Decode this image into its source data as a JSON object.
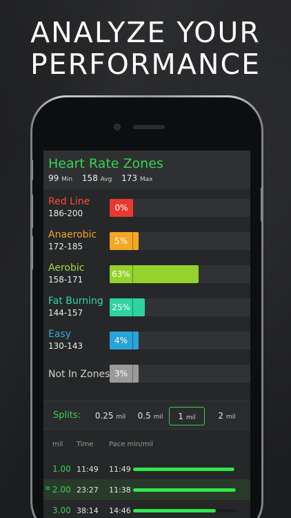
{
  "headline": {
    "line1": "ANALYZE YOUR",
    "line2": "PERFORMANCE"
  },
  "heart_rate": {
    "title": "Heart Rate Zones",
    "min_value": "99",
    "min_label": "Min",
    "avg_value": "158",
    "avg_label": "Avg",
    "max_value": "173",
    "max_label": "Max"
  },
  "zones": [
    {
      "name": "Red Line",
      "range": "186-200",
      "percent_label": "0%",
      "fraction": 0.0,
      "color": "#e8392f",
      "name_color": "#ff4a3d"
    },
    {
      "name": "Anaerobic",
      "range": "172-185",
      "percent_label": "5%",
      "fraction": 0.05,
      "color": "#f5a623",
      "name_color": "#f5a623"
    },
    {
      "name": "Aerobic",
      "range": "158-171",
      "percent_label": "63%",
      "fraction": 0.63,
      "color": "#94d22e",
      "name_color": "#a5d83a"
    },
    {
      "name": "Fat Burning",
      "range": "144-157",
      "percent_label": "25%",
      "fraction": 0.25,
      "color": "#2ed3a0",
      "name_color": "#35d6a6"
    },
    {
      "name": "Easy",
      "range": "130-143",
      "percent_label": "4%",
      "fraction": 0.04,
      "color": "#2aa3d8",
      "name_color": "#34a8e0"
    },
    {
      "name": "Not In Zones",
      "range": "",
      "percent_label": "3%",
      "fraction": 0.03,
      "color": "#9a9a9a",
      "name_color": "#cfcfcf"
    }
  ],
  "splits": {
    "label": "Splits:",
    "options": [
      {
        "value": "0.25",
        "unit": "mil",
        "active": false
      },
      {
        "value": "0.5",
        "unit": "mil",
        "active": false
      },
      {
        "value": "1",
        "unit": "mil",
        "active": true
      },
      {
        "value": "2",
        "unit": "mil",
        "active": false
      }
    ]
  },
  "table": {
    "headers": {
      "mil": "mil",
      "time": "Time",
      "pace": "Pace min/mil"
    },
    "rows": [
      {
        "mil": "1.00",
        "time": "11:49",
        "pace": "11:49",
        "pace_fraction": 0.98,
        "highlight": false
      },
      {
        "mil": "2.00",
        "time": "23:27",
        "pace": "11:38",
        "pace_fraction": 0.99,
        "highlight": true
      },
      {
        "mil": "3.00",
        "time": "38:14",
        "pace": "14:46",
        "pace_fraction": 0.8,
        "highlight": false
      }
    ]
  },
  "icons": {
    "drag_handle": "drag-handle-icon"
  }
}
